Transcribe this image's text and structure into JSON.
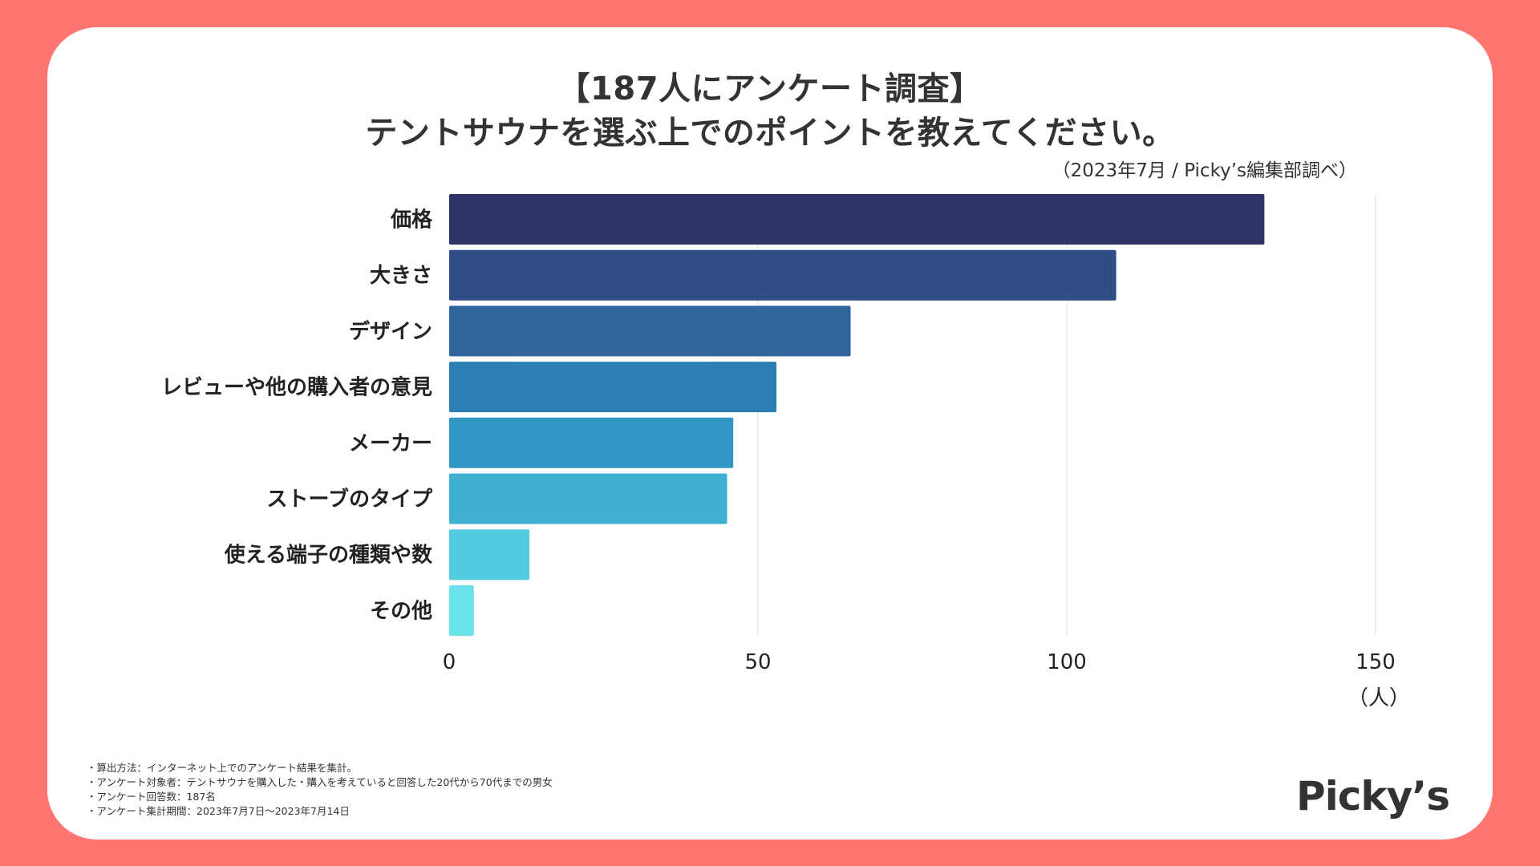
{
  "title_line1": "【187人にアンケート調査】",
  "title_line2": "テントサウナを選ぶ上でのポイントを教えてください。",
  "source": "（2023年7月 / Picky’s編集部調べ）",
  "chart_data": {
    "type": "bar",
    "orientation": "horizontal",
    "categories": [
      "価格",
      "大きさ",
      "デザイン",
      "レビューや他の購入者の意見",
      "メーカー",
      "ストーブのタイプ",
      "使える端子の種類や数",
      "その他"
    ],
    "values": [
      132,
      108,
      65,
      53,
      46,
      45,
      13,
      4
    ],
    "colors": [
      "#303468",
      "#2f4e86",
      "#2f659b",
      "#2d7eb2",
      "#3097c4",
      "#3eb0d1",
      "#52cbdf",
      "#68e2e8"
    ],
    "xlim": [
      0,
      150
    ],
    "xticks": [
      0,
      50,
      100,
      150
    ],
    "xunit": "（人）",
    "grid": true
  },
  "notes": [
    "・算出方法：インターネット上でのアンケート結果を集計。",
    "・アンケート対象者：テントサウナを購入した・購入を考えていると回答した20代から70代までの男女",
    "・アンケート回答数：187名",
    "・アンケート集計期間：2023年7月7日〜2023年7月14日"
  ],
  "logo": "Picky’s"
}
